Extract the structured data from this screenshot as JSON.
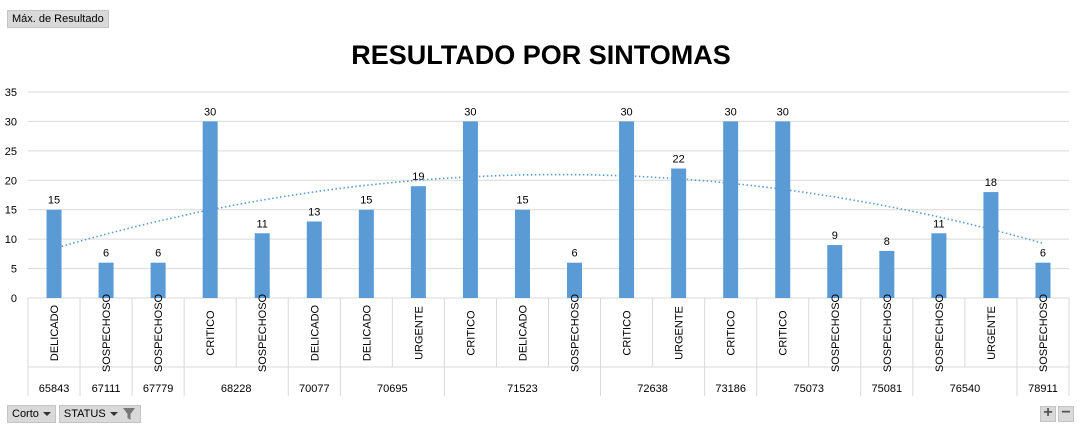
{
  "value_field_button": "Máx. de Resultado",
  "filter_buttons": {
    "sort": "Corto",
    "status": "STATUS"
  },
  "zoom": {
    "in": "+",
    "out": "−"
  },
  "chart_data": {
    "type": "bar",
    "title": "RESULTADO POR SINTOMAS",
    "ylim": [
      0,
      35
    ],
    "yticks": [
      0,
      5,
      10,
      15,
      20,
      25,
      30,
      35
    ],
    "grid": true,
    "bar_color": "#5b9bd5",
    "trendline": {
      "type": "polynomial",
      "style": "dotted",
      "color": "#5b9bd5"
    },
    "groups": [
      {
        "label": "65843",
        "categories": [
          "DELICADO"
        ],
        "values": [
          15
        ]
      },
      {
        "label": "67111",
        "categories": [
          "SOSPECHOSO"
        ],
        "values": [
          6
        ]
      },
      {
        "label": "67779",
        "categories": [
          "SOSPECHOSO"
        ],
        "values": [
          6
        ]
      },
      {
        "label": "68228",
        "categories": [
          "CRITICO",
          "SOSPECHOSO"
        ],
        "values": [
          30,
          11
        ]
      },
      {
        "label": "70077",
        "categories": [
          "DELICADO"
        ],
        "values": [
          13
        ]
      },
      {
        "label": "70695",
        "categories": [
          "DELICADO",
          "URGENTE"
        ],
        "values": [
          15,
          19
        ]
      },
      {
        "label": "71523",
        "categories": [
          "CRITICO",
          "DELICADO",
          "SOSPECHOSO"
        ],
        "values": [
          30,
          15,
          6
        ]
      },
      {
        "label": "72638",
        "categories": [
          "CRITICO",
          "URGENTE"
        ],
        "values": [
          30,
          22
        ]
      },
      {
        "label": "73186",
        "categories": [
          "CRITICO"
        ],
        "values": [
          30
        ]
      },
      {
        "label": "75073",
        "categories": [
          "CRITICO",
          "SOSPECHOSO"
        ],
        "values": [
          30,
          9
        ]
      },
      {
        "label": "75081",
        "categories": [
          "SOSPECHOSO"
        ],
        "values": [
          8
        ]
      },
      {
        "label": "76540",
        "categories": [
          "SOSPECHOSO",
          "URGENTE"
        ],
        "values": [
          11,
          18
        ]
      },
      {
        "label": "78911",
        "categories": [
          "SOSPECHOSO"
        ],
        "values": [
          6
        ]
      }
    ]
  }
}
